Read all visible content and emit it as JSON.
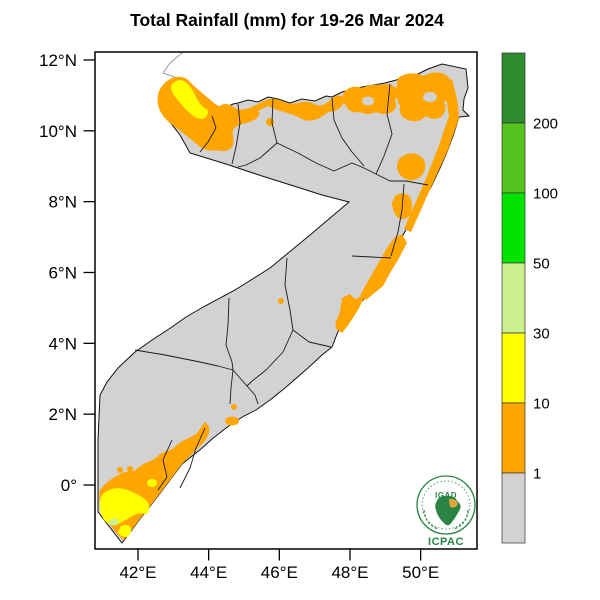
{
  "title": "Total Rainfall (mm) for 19-26 Mar 2024",
  "axes": {
    "lat_ticks": [
      {
        "value": 12,
        "label": "12°N"
      },
      {
        "value": 10,
        "label": "10°N"
      },
      {
        "value": 8,
        "label": "8°N"
      },
      {
        "value": 6,
        "label": "6°N"
      },
      {
        "value": 4,
        "label": "4°N"
      },
      {
        "value": 2,
        "label": "2°N"
      },
      {
        "value": 0,
        "label": "0°"
      }
    ],
    "lon_ticks": [
      {
        "value": 42,
        "label": "42°E"
      },
      {
        "value": 44,
        "label": "44°E"
      },
      {
        "value": 46,
        "label": "46°E"
      },
      {
        "value": 48,
        "label": "48°E"
      },
      {
        "value": 50,
        "label": "50°E"
      }
    ]
  },
  "colorbar": {
    "segments": [
      {
        "color": "#2E8B2E",
        "range": "above 200",
        "label_below": "200"
      },
      {
        "color": "#54C41E",
        "range": "100 - 200",
        "label_below": "100"
      },
      {
        "color": "#00E400",
        "range": "50 - 100",
        "label_below": "50"
      },
      {
        "color": "#C9F08C",
        "range": "30 - 50",
        "label_below": "30"
      },
      {
        "color": "#FFFF00",
        "range": "10 - 30",
        "label_below": "10"
      },
      {
        "color": "#FFA500",
        "range": "1 - 10",
        "label_below": "1"
      },
      {
        "color": "#D2D2D2",
        "range": "below 1",
        "label_below": ""
      }
    ]
  },
  "map_colors": {
    "ocean": "#FFFFFF",
    "land_below_1mm": "#D2D2D2",
    "rain_1_10mm": "#FFA500",
    "rain_10_30mm": "#FFFF00",
    "rain_30_50mm": "#C9F08C",
    "boundary": "#1A1A1A"
  },
  "logo": {
    "top_text": "IGAD",
    "bottom_text": "ICPAC"
  }
}
